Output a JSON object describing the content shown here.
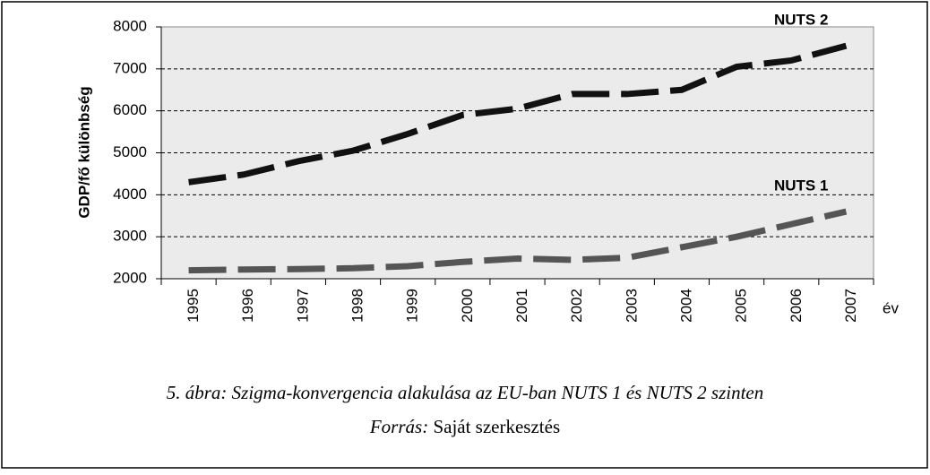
{
  "chart_data": {
    "type": "line",
    "y_label": "GDP/fő különbség",
    "x_label": "év",
    "categories": [
      "1995",
      "1996",
      "1997",
      "1998",
      "1999",
      "2000",
      "2001",
      "2002",
      "2003",
      "2004",
      "2005",
      "2006",
      "2007"
    ],
    "series": [
      {
        "name": "NUTS 2",
        "color": "#111111",
        "values": [
          4300,
          4480,
          4800,
          5050,
          5450,
          5900,
          6050,
          6400,
          6400,
          6500,
          7050,
          7200,
          7550
        ]
      },
      {
        "name": "NUTS 1",
        "color": "#555555",
        "values": [
          2200,
          2220,
          2230,
          2250,
          2300,
          2400,
          2480,
          2450,
          2500,
          2750,
          3000,
          3300,
          3600
        ]
      }
    ],
    "ylim": [
      2000,
      8000
    ],
    "yticks": [
      2000,
      3000,
      4000,
      5000,
      6000,
      7000,
      8000
    ],
    "grid": true,
    "caption": "5. ábra: Szigma-konvergencia alakulása az EU-ban NUTS 1 és NUTS 2 szinten",
    "source_label": "Forrás:",
    "source_text": "Saját szerkesztés"
  }
}
